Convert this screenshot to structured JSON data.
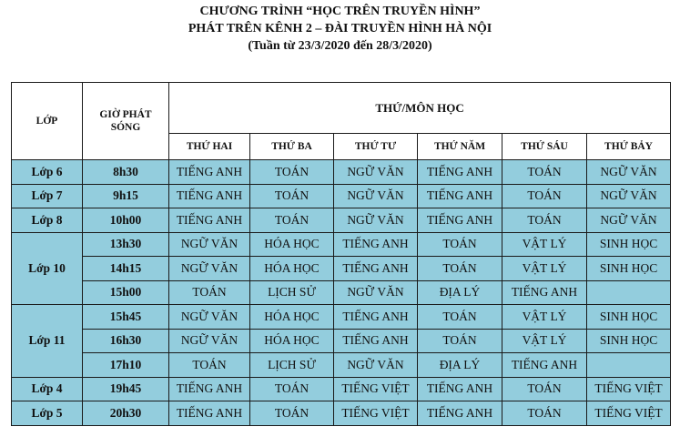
{
  "title": {
    "line1": "CHƯƠNG TRÌNH “HỌC TRÊN TRUYỀN HÌNH”",
    "line2": "PHÁT TRÊN KÊNH 2 – ĐÀI TRUYỀN HÌNH HÀ NỘI",
    "line3": "(Tuần từ 23/3/2020 đến 28/3/2020)"
  },
  "table": {
    "headers": {
      "class": "LỚP",
      "time": "GIỜ PHÁT SÓNG",
      "days_group": "THỨ/MÔN HỌC",
      "days": [
        "THỨ HAI",
        "THỨ BA",
        "THỨ TƯ",
        "THỨ NĂM",
        "THỨ SÁU",
        "THỨ BẢY"
      ]
    },
    "row_color": "#93cddd",
    "groups": [
      {
        "class": "Lớp 6",
        "slots": [
          {
            "time": "8h30",
            "subjects": [
              "TIẾNG ANH",
              "TOÁN",
              "NGỮ VĂN",
              "TIẾNG ANH",
              "TOÁN",
              "NGỮ VĂN"
            ]
          }
        ]
      },
      {
        "class": "Lớp 7",
        "slots": [
          {
            "time": "9h15",
            "subjects": [
              "TIẾNG ANH",
              "TOÁN",
              "NGỮ VĂN",
              "TIẾNG ANH",
              "TOÁN",
              "NGỮ VĂN"
            ]
          }
        ]
      },
      {
        "class": "Lớp 8",
        "slots": [
          {
            "time": "10h00",
            "subjects": [
              "TIẾNG ANH",
              "TOÁN",
              "NGỮ VĂN",
              "TIẾNG ANH",
              "TOÁN",
              "NGỮ VĂN"
            ]
          }
        ]
      },
      {
        "class": "Lớp 10",
        "slots": [
          {
            "time": "13h30",
            "subjects": [
              "NGỮ VĂN",
              "HÓA HỌC",
              "TIẾNG ANH",
              "TOÁN",
              "VẬT LÝ",
              "SINH HỌC"
            ]
          },
          {
            "time": "14h15",
            "subjects": [
              "NGỮ VĂN",
              "HÓA HỌC",
              "TIẾNG ANH",
              "TOÁN",
              "VẬT LÝ",
              "SINH HỌC"
            ]
          },
          {
            "time": "15h00",
            "subjects": [
              "TOÁN",
              "LỊCH SỬ",
              "NGỮ VĂN",
              "ĐỊA LÝ",
              "TIẾNG ANH",
              ""
            ]
          }
        ]
      },
      {
        "class": "Lớp 11",
        "slots": [
          {
            "time": "15h45",
            "subjects": [
              "NGỮ VĂN",
              "HÓA HỌC",
              "TIẾNG ANH",
              "TOÁN",
              "VẬT LÝ",
              "SINH HỌC"
            ]
          },
          {
            "time": "16h30",
            "subjects": [
              "NGỮ VĂN",
              "HÓA HỌC",
              "TIẾNG ANH",
              "TOÁN",
              "VẬT LÝ",
              "SINH HỌC"
            ]
          },
          {
            "time": "17h10",
            "subjects": [
              "TOÁN",
              "LỊCH SỬ",
              "NGỮ VĂN",
              "ĐỊA LÝ",
              "TIẾNG ANH",
              ""
            ]
          }
        ]
      },
      {
        "class": "Lớp 4",
        "slots": [
          {
            "time": "19h45",
            "subjects": [
              "TIẾNG ANH",
              "TOÁN",
              "TIẾNG VIỆT",
              "TIẾNG ANH",
              "TOÁN",
              "TIẾNG VIỆT"
            ]
          }
        ]
      },
      {
        "class": "Lớp 5",
        "slots": [
          {
            "time": "20h30",
            "subjects": [
              "TIẾNG ANH",
              "TOÁN",
              "TIẾNG VIỆT",
              "TIẾNG ANH",
              "TOÁN",
              "TIẾNG VIỆT"
            ]
          }
        ]
      }
    ]
  }
}
